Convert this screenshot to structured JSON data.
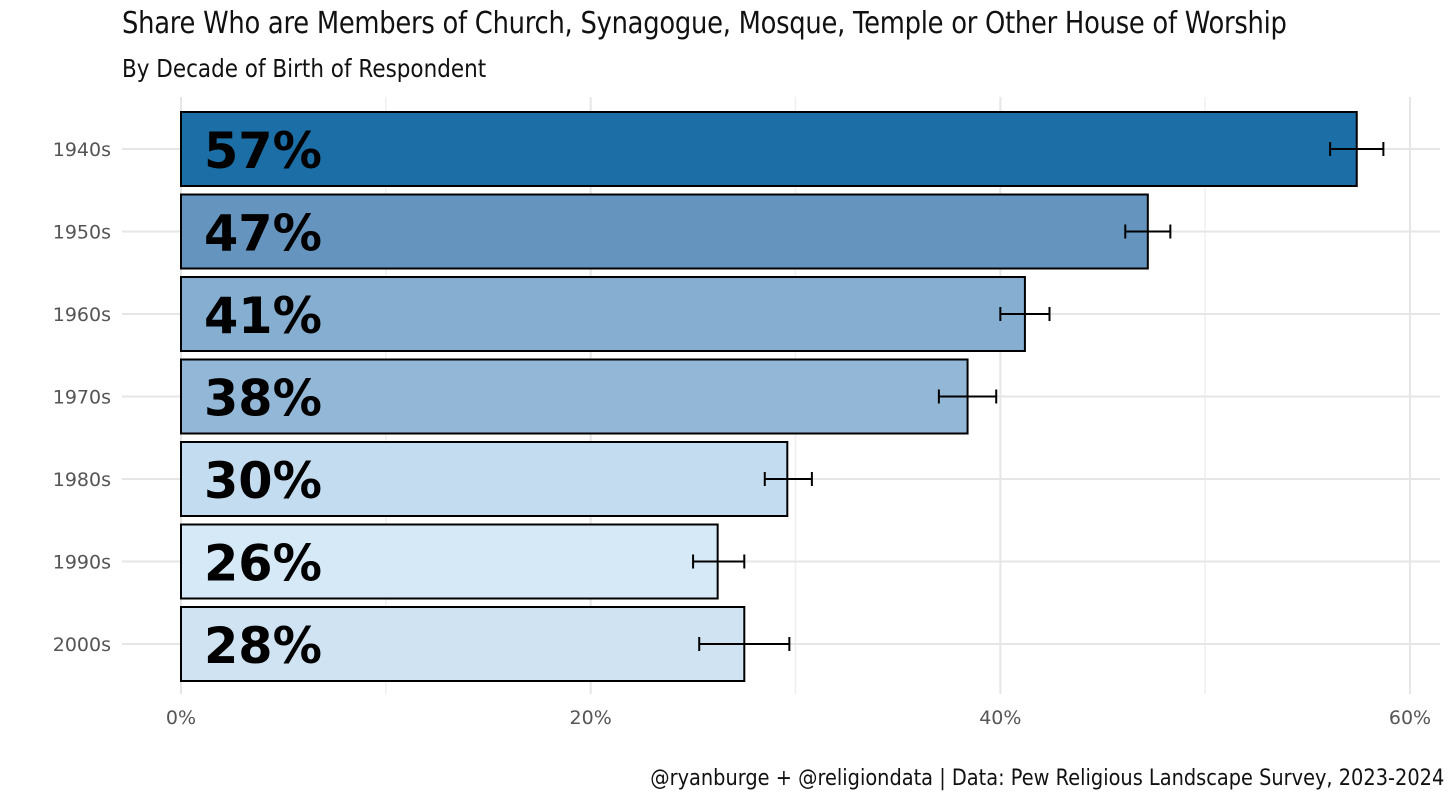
{
  "chart_data": {
    "type": "bar",
    "orientation": "horizontal",
    "title": "Share Who are Members of Church, Synagogue, Mosque, Temple or Other House of Worship",
    "subtitle": "By Decade of Birth of Respondent",
    "caption": "@ryanburge + @religiondata | Data: Pew Religious Landscape Survey, 2023-2024",
    "xlabel": "",
    "ylabel": "",
    "xlim": [
      0,
      0.61
    ],
    "x_ticks": [
      {
        "value": 0,
        "label": "0%"
      },
      {
        "value": 0.2,
        "label": "20%"
      },
      {
        "value": 0.4,
        "label": "40%"
      },
      {
        "value": 0.6,
        "label": "60%"
      }
    ],
    "grid": true,
    "bars": [
      {
        "category": "1940s",
        "value": 0.574,
        "label": "57%",
        "ci_low": 0.561,
        "ci_high": 0.587,
        "color": "#1c6fa6"
      },
      {
        "category": "1950s",
        "value": 0.472,
        "label": "47%",
        "ci_low": 0.461,
        "ci_high": 0.483,
        "color": "#6595bf"
      },
      {
        "category": "1960s",
        "value": 0.412,
        "label": "41%",
        "ci_low": 0.4,
        "ci_high": 0.424,
        "color": "#86aed0"
      },
      {
        "category": "1970s",
        "value": 0.384,
        "label": "38%",
        "ci_low": 0.37,
        "ci_high": 0.398,
        "color": "#93b8d7"
      },
      {
        "category": "1980s",
        "value": 0.296,
        "label": "30%",
        "ci_low": 0.285,
        "ci_high": 0.308,
        "color": "#c4dcef"
      },
      {
        "category": "1990s",
        "value": 0.262,
        "label": "26%",
        "ci_low": 0.25,
        "ci_high": 0.275,
        "color": "#d6e9f7"
      },
      {
        "category": "2000s",
        "value": 0.275,
        "label": "28%",
        "ci_low": 0.253,
        "ci_high": 0.297,
        "color": "#cfe3f3"
      }
    ]
  }
}
